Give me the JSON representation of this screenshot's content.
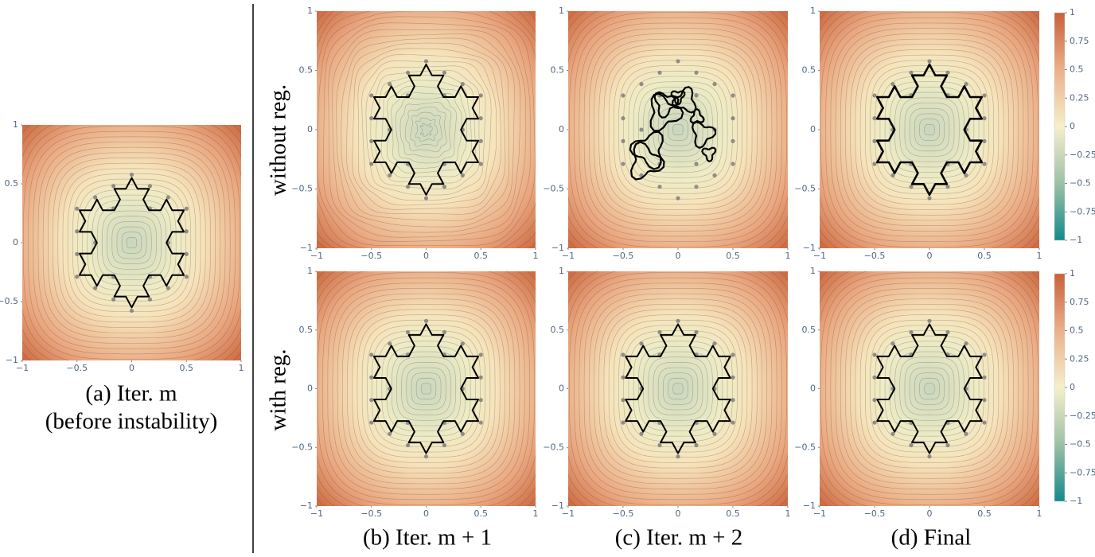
{
  "figure": {
    "lim": [
      -1,
      1
    ],
    "ticks": [
      {
        "value": -1,
        "label": "−1"
      },
      {
        "value": -0.5,
        "label": "−0.5"
      },
      0,
      0.5,
      1
    ],
    "colorbar_lim": [
      -1,
      1
    ],
    "colorbar_ticks": [
      1,
      0.75,
      0.5,
      0.25,
      0,
      {
        "value": -0.25,
        "label": "−0.25"
      },
      {
        "value": -0.5,
        "label": "−0.5"
      },
      {
        "value": -0.75,
        "label": "−0.75"
      },
      {
        "value": -1,
        "label": "−1"
      }
    ],
    "row_labels": [
      "without reg.",
      "with reg."
    ],
    "captions": [
      "(a) Iter. m",
      "(before instability)",
      "(b) Iter. m + 1",
      "(c) Iter. m + 2",
      "(d) Final"
    ]
  }
}
